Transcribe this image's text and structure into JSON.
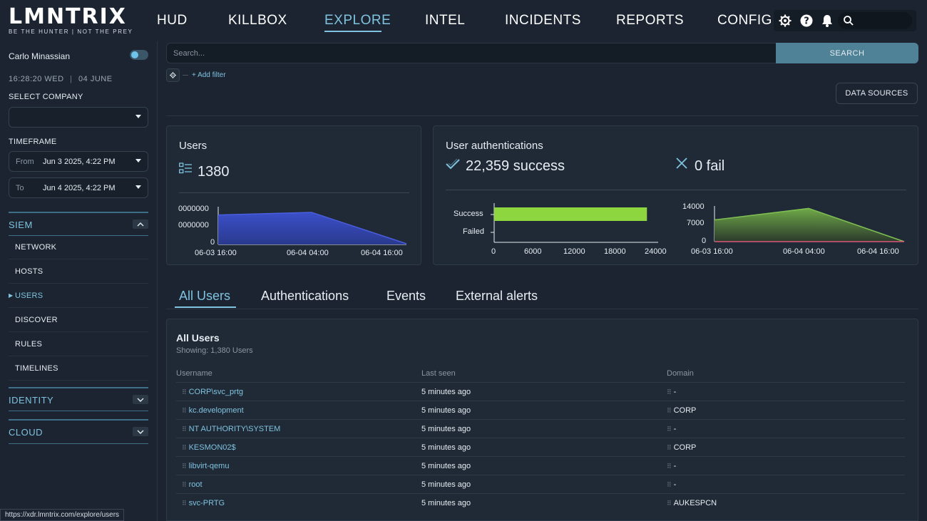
{
  "logo": {
    "name": "LMNTRIX",
    "tagline": "BE THE HUNTER   |   NOT THE PREY"
  },
  "nav": {
    "items": [
      "HUD",
      "KILLBOX",
      "EXPLORE",
      "INTEL",
      "INCIDENTS",
      "REPORTS",
      "CONFIG"
    ],
    "active": "EXPLORE"
  },
  "topbar_icons": [
    "gear-icon",
    "help-icon",
    "bell-icon",
    "search-icon"
  ],
  "sidebar": {
    "user_name": "Carlo Minassian",
    "clock": {
      "time": "16:28:20",
      "day": "WED",
      "date": "04 JUNE"
    },
    "select_company_label": "SELECT COMPANY",
    "select_company_value": "",
    "timeframe_label": "TIMEFRAME",
    "from_label": "From",
    "from_value": "Jun 3 2025, 4:22 PM",
    "to_label": "To",
    "to_value": "Jun 4 2025, 4:22 PM",
    "sections": [
      {
        "title": "SIEM",
        "expanded": true,
        "items": [
          "NETWORK",
          "HOSTS",
          "USERS",
          "DISCOVER",
          "RULES",
          "TIMELINES"
        ],
        "active": "USERS"
      },
      {
        "title": "IDENTITY",
        "expanded": false
      },
      {
        "title": "CLOUD",
        "expanded": false
      }
    ]
  },
  "status_url": "https://xdr.lmntrix.com/explore/users",
  "search": {
    "placeholder": "Search...",
    "value": "",
    "button": "SEARCH",
    "add_filter": "+ Add filter",
    "data_sources": "DATA SOURCES"
  },
  "users_card": {
    "title": "Users",
    "count": "1380",
    "y_ticks": [
      "0000000",
      "0000000",
      "0"
    ],
    "x_ticks": [
      "06-03 16:00",
      "06-04 04:00",
      "06-04 16:00"
    ]
  },
  "auth_card": {
    "title": "User authentications",
    "success": "22,359 success",
    "fail": "0 fail",
    "bar_labels": [
      "Success",
      "Failed"
    ],
    "bar_x_ticks": [
      "0",
      "6000",
      "12000",
      "18000",
      "24000"
    ],
    "area_y_ticks": [
      "14000",
      "7000",
      "0"
    ],
    "area_x_ticks": [
      "06-03 16:00",
      "06-04 04:00",
      "06-04 16:00"
    ]
  },
  "chart_data": [
    {
      "type": "area",
      "x": [
        "06-03 16:00",
        "06-04 04:00",
        "06-04 16:00"
      ],
      "series": [
        {
          "values": [
            0.78,
            0.85,
            0.02
          ]
        }
      ],
      "color": "#3b4fc9"
    },
    {
      "type": "bar",
      "orientation": "horizontal",
      "categories": [
        "Success",
        "Failed"
      ],
      "values": [
        22359,
        0
      ],
      "xlim": [
        0,
        24000
      ],
      "color": "#8ed63f"
    },
    {
      "type": "area",
      "x": [
        "06-03 16:00",
        "06-04 04:00",
        "06-04 16:00"
      ],
      "series": [
        {
          "values": [
            8700,
            13300,
            0
          ],
          "color": "#7fbf52"
        },
        {
          "values": [
            0,
            0,
            0
          ],
          "color": "#d9597a"
        }
      ],
      "ylim": [
        0,
        14000
      ]
    }
  ],
  "tabs": [
    "All Users",
    "Authentications",
    "Events",
    "External alerts"
  ],
  "active_tab": "All Users",
  "table": {
    "title": "All Users",
    "subtitle": "Showing: 1,380 Users",
    "columns": [
      "Username",
      "Last seen",
      "Domain"
    ],
    "rows": [
      {
        "user": "CORP\\svc_prtg",
        "seen": "5 minutes ago",
        "domain": "-"
      },
      {
        "user": "kc.development",
        "seen": "5 minutes ago",
        "domain": "CORP"
      },
      {
        "user": "NT AUTHORITY\\SYSTEM",
        "seen": "5 minutes ago",
        "domain": "-"
      },
      {
        "user": "KESMON02$",
        "seen": "5 minutes ago",
        "domain": "CORP"
      },
      {
        "user": "libvirt-qemu",
        "seen": "5 minutes ago",
        "domain": "-"
      },
      {
        "user": "root",
        "seen": "5 minutes ago",
        "domain": "-"
      },
      {
        "user": "svc-PRTG",
        "seen": "5 minutes ago",
        "domain": "AUKESPCN"
      }
    ]
  },
  "colors": {
    "accent": "#7fc3e0",
    "search_button": "#4f8296",
    "success_bar": "#8ed63f",
    "users_area": "#3b4fc9"
  }
}
